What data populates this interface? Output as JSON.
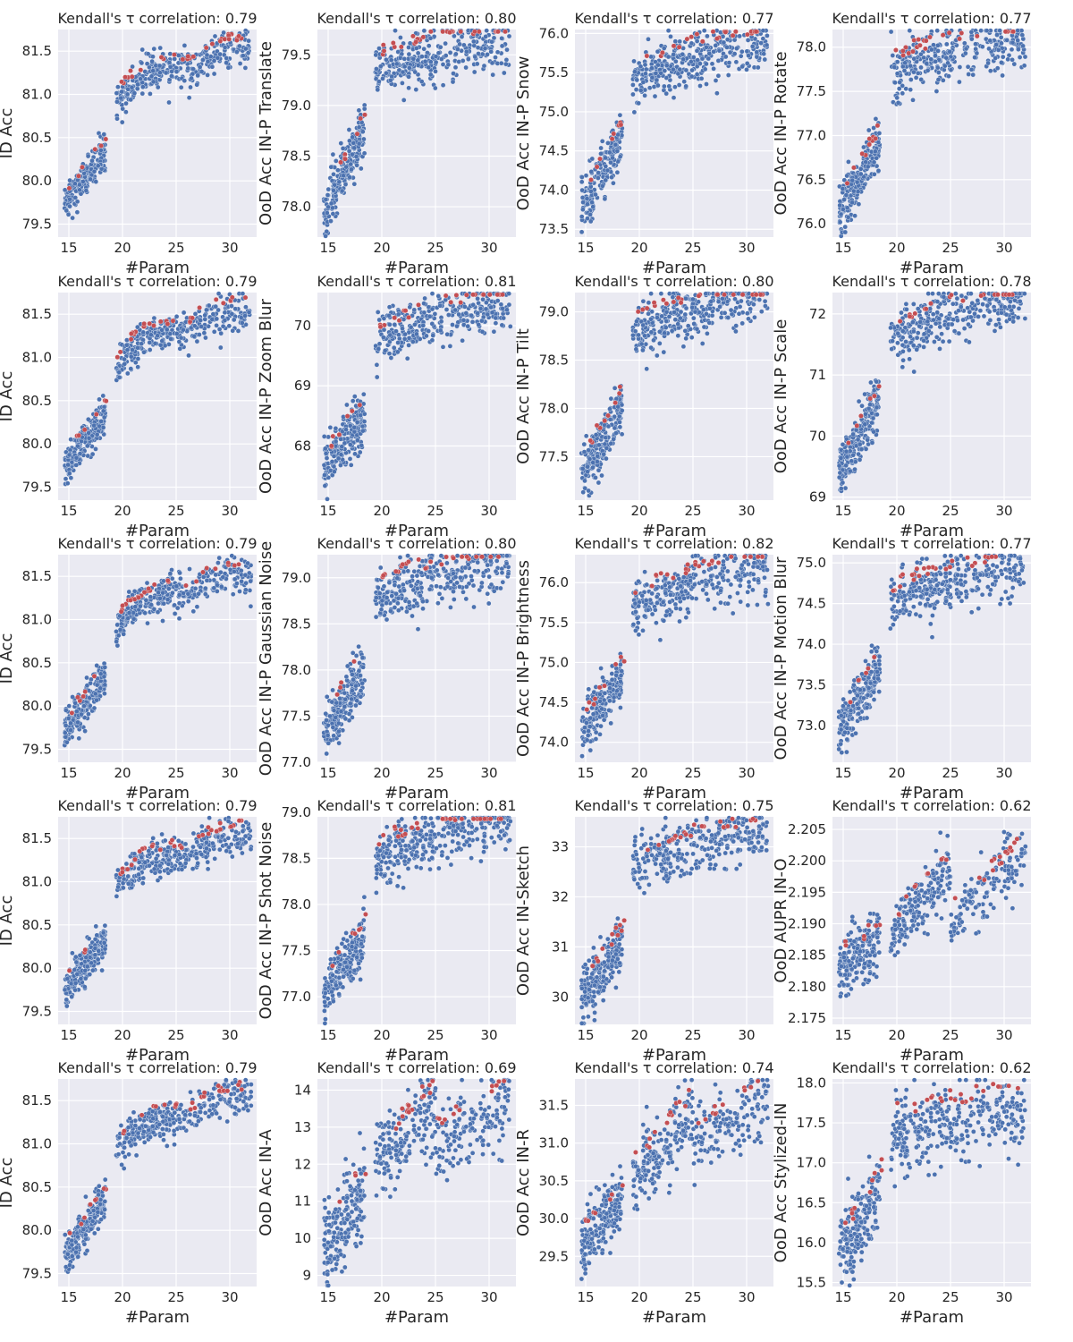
{
  "figure": {
    "x_label": "#Param",
    "x_ticks": [
      15,
      20,
      25,
      30
    ],
    "x_range": [
      14,
      32.5
    ],
    "colors": {
      "background": "#eaeaf2",
      "grid": "#ffffff",
      "point": "#4c72b0",
      "highlight": "#c44e52",
      "text": "#262626"
    }
  },
  "chart_data": [
    {
      "type": "scatter",
      "title": "Kendall's τ correlation: 0.79",
      "ylabel": "ID Acc",
      "ylim": [
        79.35,
        81.75
      ],
      "yticks": [
        "79.5",
        "80.0",
        "80.5",
        "81.0",
        "81.5"
      ],
      "shape": "idacc",
      "spread": 0.11,
      "seed": 11
    },
    {
      "type": "scatter",
      "title": "Kendall's τ correlation: 0.80",
      "ylabel": "OoD Acc IN-P Translate",
      "ylim": [
        77.7,
        79.75
      ],
      "yticks": [
        "78.0",
        "78.5",
        "79.0",
        "79.5"
      ],
      "shape": "sat",
      "y0": 77.9,
      "y1": 78.95,
      "y2": 79.3,
      "y3": 79.65,
      "spread": 0.14,
      "seed": 12
    },
    {
      "type": "scatter",
      "title": "Kendall's τ correlation: 0.77",
      "ylabel": "OoD Acc IN-P Snow",
      "ylim": [
        73.4,
        76.05
      ],
      "yticks": [
        "73.5",
        "74.0",
        "74.5",
        "75.0",
        "75.5",
        "76.0"
      ],
      "shape": "sat",
      "y0": 73.7,
      "y1": 74.9,
      "y2": 75.35,
      "y3": 75.9,
      "spread": 0.17,
      "seed": 13
    },
    {
      "type": "scatter",
      "title": "Kendall's τ correlation: 0.77",
      "ylabel": "OoD Acc IN-P Rotate",
      "ylim": [
        75.85,
        78.2
      ],
      "yticks": [
        "76.0",
        "76.5",
        "77.0",
        "77.5",
        "78.0"
      ],
      "shape": "sat",
      "y0": 76.1,
      "y1": 77.1,
      "y2": 77.65,
      "y3": 78.1,
      "spread": 0.16,
      "seed": 14
    },
    {
      "type": "scatter",
      "title": "Kendall's τ correlation: 0.79",
      "ylabel": "ID Acc",
      "ylim": [
        79.35,
        81.75
      ],
      "yticks": [
        "79.5",
        "80.0",
        "80.5",
        "81.0",
        "81.5"
      ],
      "shape": "idacc",
      "spread": 0.11,
      "seed": 21
    },
    {
      "type": "scatter",
      "title": "Kendall's τ correlation: 0.81",
      "ylabel": "OoD Acc IN-P Zoom Blur",
      "ylim": [
        67.1,
        70.55
      ],
      "yticks": [
        "68",
        "69",
        "70"
      ],
      "shape": "sat",
      "y0": 67.6,
      "y1": 68.7,
      "y2": 69.6,
      "y3": 70.4,
      "spread": 0.22,
      "seed": 22
    },
    {
      "type": "scatter",
      "title": "Kendall's τ correlation: 0.80",
      "ylabel": "OoD Acc IN-P Tilt",
      "ylim": [
        77.05,
        79.2
      ],
      "yticks": [
        "77.5",
        "78.0",
        "78.5",
        "79.0"
      ],
      "shape": "sat",
      "y0": 77.3,
      "y1": 78.2,
      "y2": 78.75,
      "y3": 79.15,
      "spread": 0.14,
      "seed": 23
    },
    {
      "type": "scatter",
      "title": "Kendall's τ correlation: 0.78",
      "ylabel": "OoD Acc IN-P Scale",
      "ylim": [
        68.95,
        72.35
      ],
      "yticks": [
        "69",
        "70",
        "71",
        "72"
      ],
      "shape": "sat",
      "y0": 69.4,
      "y1": 70.9,
      "y2": 71.5,
      "y3": 72.25,
      "spread": 0.22,
      "seed": 24
    },
    {
      "type": "scatter",
      "title": "Kendall's τ correlation: 0.79",
      "ylabel": "ID Acc",
      "ylim": [
        79.35,
        81.75
      ],
      "yticks": [
        "79.5",
        "80.0",
        "80.5",
        "81.0",
        "81.5"
      ],
      "shape": "idacc",
      "spread": 0.11,
      "seed": 31
    },
    {
      "type": "scatter",
      "title": "Kendall's τ correlation: 0.80",
      "ylabel": "OoD Acc IN-P Gaussian Noise",
      "ylim": [
        77.0,
        79.25
      ],
      "yticks": [
        "77.0",
        "77.5",
        "78.0",
        "78.5",
        "79.0"
      ],
      "shape": "sat",
      "y0": 77.3,
      "y1": 78.2,
      "y2": 78.75,
      "y3": 79.15,
      "spread": 0.15,
      "seed": 32
    },
    {
      "type": "scatter",
      "title": "Kendall's τ correlation: 0.82",
      "ylabel": "OoD Acc IN-P Brightness",
      "ylim": [
        73.75,
        76.35
      ],
      "yticks": [
        "74.0",
        "74.5",
        "75.0",
        "75.5",
        "76.0"
      ],
      "shape": "sat",
      "y0": 74.1,
      "y1": 75.0,
      "y2": 75.6,
      "y3": 76.2,
      "spread": 0.17,
      "seed": 33
    },
    {
      "type": "scatter",
      "title": "Kendall's τ correlation: 0.77",
      "ylabel": "OoD Acc IN-P Motion Blur",
      "ylim": [
        72.55,
        75.1
      ],
      "yticks": [
        "73.0",
        "73.5",
        "74.0",
        "74.5",
        "75.0"
      ],
      "shape": "sat",
      "y0": 72.9,
      "y1": 73.9,
      "y2": 74.45,
      "y3": 74.95,
      "spread": 0.17,
      "seed": 34
    },
    {
      "type": "scatter",
      "title": "Kendall's τ correlation: 0.79",
      "ylabel": "ID Acc",
      "ylim": [
        79.35,
        81.75
      ],
      "yticks": [
        "79.5",
        "80.0",
        "80.5",
        "81.0",
        "81.5"
      ],
      "shape": "idacc",
      "spread": 0.11,
      "seed": 41
    },
    {
      "type": "scatter",
      "title": "Kendall's τ correlation: 0.81",
      "ylabel": "OoD Acc IN-P Shot Noise",
      "ylim": [
        76.7,
        78.95
      ],
      "yticks": [
        "77.0",
        "77.5",
        "78.0",
        "78.5",
        "79.0"
      ],
      "shape": "sat",
      "y0": 77.0,
      "y1": 77.8,
      "y2": 78.45,
      "y3": 78.9,
      "spread": 0.15,
      "seed": 42
    },
    {
      "type": "scatter",
      "title": "Kendall's τ correlation: 0.75",
      "ylabel": "OoD Acc IN-Sketch",
      "ylim": [
        29.45,
        33.6
      ],
      "yticks": [
        "30",
        "31",
        "32",
        "33"
      ],
      "shape": "sat",
      "y0": 29.9,
      "y1": 31.4,
      "y2": 32.5,
      "y3": 33.3,
      "spread": 0.27,
      "seed": 43
    },
    {
      "type": "scatter",
      "title": "Kendall's τ correlation: 0.62",
      "ylabel": "OoD AUPR IN-O",
      "ylim": [
        2.174,
        2.207
      ],
      "yticks": [
        "2.175",
        "2.180",
        "2.185",
        "2.190",
        "2.195",
        "2.200",
        "2.205"
      ],
      "shape": "aupr",
      "spread": 0.0022,
      "seed": 44
    },
    {
      "type": "scatter",
      "title": "Kendall's τ correlation: 0.79",
      "ylabel": "ID Acc",
      "ylim": [
        79.35,
        81.75
      ],
      "yticks": [
        "79.5",
        "80.0",
        "80.5",
        "81.0",
        "81.5"
      ],
      "shape": "idacc",
      "spread": 0.11,
      "seed": 51
    },
    {
      "type": "scatter",
      "title": "Kendall's τ correlation: 0.69",
      "ylabel": "OoD Acc IN-A",
      "ylim": [
        8.7,
        14.3
      ],
      "yticks": [
        "9",
        "10",
        "11",
        "12",
        "13",
        "14"
      ],
      "shape": "ina",
      "spread": 0.55,
      "seed": 52
    },
    {
      "type": "scatter",
      "title": "Kendall's τ correlation: 0.74",
      "ylabel": "OoD Acc IN-R",
      "ylim": [
        29.1,
        31.85
      ],
      "yticks": [
        "29.5",
        "30.0",
        "30.5",
        "31.0",
        "31.5"
      ],
      "shape": "inr",
      "spread": 0.22,
      "seed": 53
    },
    {
      "type": "scatter",
      "title": "Kendall's τ correlation: 0.62",
      "ylabel": "OoD Acc Stylized-IN",
      "ylim": [
        15.45,
        18.05
      ],
      "yticks": [
        "15.5",
        "16.0",
        "16.5",
        "17.0",
        "17.5",
        "18.0"
      ],
      "shape": "sat",
      "y0": 15.8,
      "y1": 16.8,
      "y2": 17.25,
      "y3": 17.65,
      "spread": 0.25,
      "seed": 54
    }
  ]
}
